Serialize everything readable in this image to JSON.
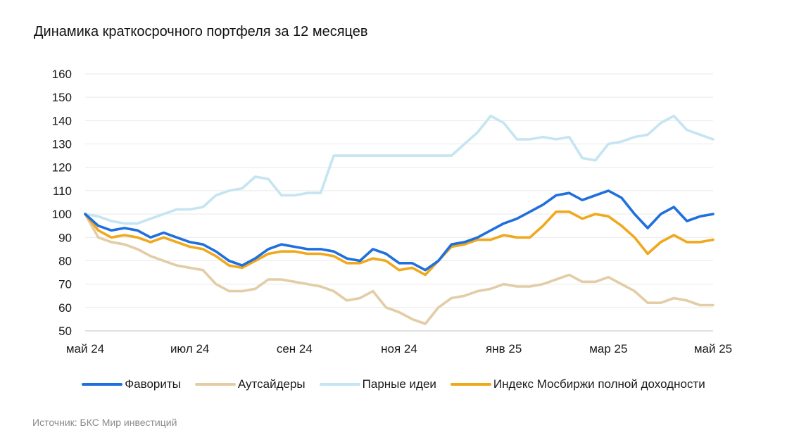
{
  "title": "Динамика краткосрочного портфеля за 12 месяцев",
  "source": "Источник: БКС Мир инвестиций",
  "chart_data": {
    "type": "line",
    "title": "Динамика краткосрочного портфеля за 12 месяцев",
    "xlabel": "",
    "ylabel": "",
    "ylim": [
      50,
      160
    ],
    "yticks": [
      50,
      60,
      70,
      80,
      90,
      100,
      110,
      120,
      130,
      140,
      150,
      160
    ],
    "x_tick_labels": [
      "май 24",
      "июл 24",
      "сен 24",
      "ноя 24",
      "янв 25",
      "мар 25",
      "май 25"
    ],
    "grid": "horizontal",
    "legend_position": "bottom",
    "x_months": [
      0,
      0.25,
      0.5,
      0.75,
      1,
      1.25,
      1.5,
      1.75,
      2,
      2.25,
      2.5,
      2.75,
      3,
      3.25,
      3.5,
      3.75,
      4,
      4.25,
      4.5,
      4.75,
      5,
      5.25,
      5.5,
      5.75,
      6,
      6.25,
      6.5,
      6.75,
      7,
      7.25,
      7.5,
      7.75,
      8,
      8.25,
      8.5,
      8.75,
      9,
      9.25,
      9.5,
      9.75,
      10,
      10.25,
      10.5,
      10.75,
      11,
      11.25,
      11.5,
      11.75,
      12
    ],
    "series": [
      {
        "name": "Фавориты",
        "color": "#1f6fde",
        "values": [
          100,
          95,
          93,
          94,
          93,
          90,
          92,
          90,
          88,
          87,
          84,
          80,
          78,
          81,
          85,
          87,
          86,
          85,
          85,
          84,
          81,
          80,
          85,
          83,
          79,
          79,
          76,
          80,
          87,
          88,
          90,
          93,
          96,
          98,
          101,
          104,
          108,
          109,
          106,
          108,
          110,
          107,
          100,
          94,
          100,
          103,
          97,
          99,
          100
        ]
      },
      {
        "name": "Аутсайдеры",
        "color": "#e3cda6",
        "values": [
          100,
          90,
          88,
          87,
          85,
          82,
          80,
          78,
          77,
          76,
          70,
          67,
          67,
          68,
          72,
          72,
          71,
          70,
          69,
          67,
          63,
          64,
          67,
          60,
          58,
          55,
          53,
          60,
          64,
          65,
          67,
          68,
          70,
          69,
          69,
          70,
          72,
          74,
          71,
          71,
          73,
          70,
          67,
          62,
          62,
          64,
          63,
          61,
          61
        ]
      },
      {
        "name": "Парные идеи",
        "color": "#c5e5f2",
        "values": [
          100,
          99,
          97,
          96,
          96,
          98,
          100,
          102,
          102,
          103,
          108,
          110,
          111,
          116,
          115,
          108,
          108,
          109,
          109,
          125,
          125,
          125,
          125,
          125,
          125,
          125,
          125,
          125,
          125,
          130,
          135,
          142,
          139,
          132,
          132,
          133,
          132,
          133,
          124,
          123,
          130,
          131,
          133,
          134,
          139,
          142,
          136,
          134,
          132
        ]
      },
      {
        "name": "Индекс Мосбиржи полной доходности",
        "color": "#f0a81c",
        "values": [
          100,
          93,
          90,
          91,
          90,
          88,
          90,
          88,
          86,
          85,
          82,
          78,
          77,
          80,
          83,
          84,
          84,
          83,
          83,
          82,
          79,
          79,
          81,
          80,
          76,
          77,
          74,
          80,
          86,
          87,
          89,
          89,
          91,
          90,
          90,
          95,
          101,
          101,
          98,
          100,
          99,
          95,
          90,
          83,
          88,
          91,
          88,
          88,
          89
        ]
      }
    ]
  }
}
